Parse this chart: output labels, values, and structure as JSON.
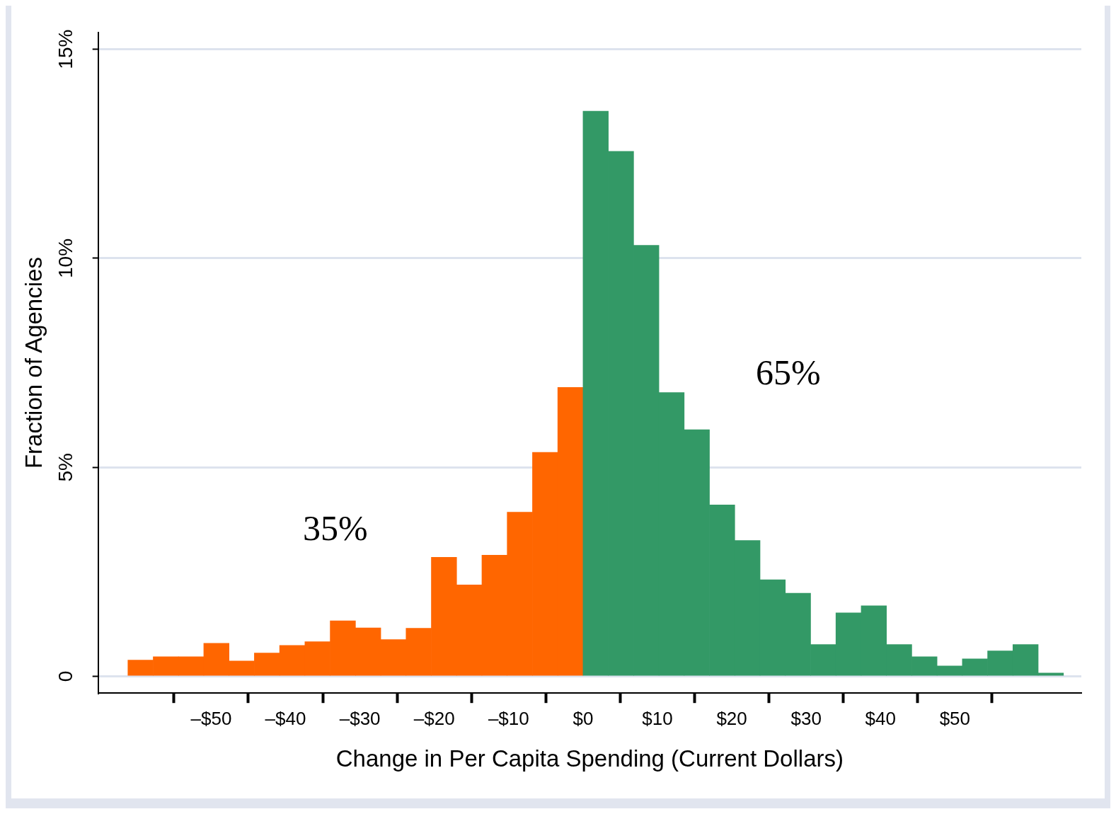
{
  "chart_data": {
    "type": "histogram",
    "xlabel": "Change in Per Capita Spending (Current Dollars)",
    "ylabel": "Fraction of Agencies",
    "bins": [
      -61.2,
      -57.8,
      -54.4,
      -51,
      -47.6,
      -44.2,
      -40.8,
      -37.4,
      -34,
      -30.6,
      -27.2,
      -23.8,
      -20.4,
      -17,
      -13.6,
      -10.2,
      -6.8,
      -3.4,
      0,
      3.4,
      6.8,
      10.2,
      13.6,
      17,
      20.4,
      23.8,
      27.2,
      30.6,
      34,
      37.4,
      40.8,
      44.2,
      47.6,
      51,
      54.4,
      57.8,
      61.2,
      64.6
    ],
    "values": [
      0.39,
      0.47,
      0.47,
      0.79,
      0.37,
      0.56,
      0.74,
      0.83,
      1.33,
      1.16,
      0.88,
      1.15,
      2.85,
      2.19,
      2.9,
      3.93,
      5.36,
      6.91,
      13.52,
      12.56,
      10.31,
      6.79,
      5.9,
      4.1,
      3.25,
      2.31,
      1.99,
      0.76,
      1.52,
      1.69,
      0.76,
      0.47,
      0.25,
      0.42,
      0.61,
      0.76,
      0.08
    ],
    "colors": [
      "#ff6600",
      "#ff6600",
      "#ff6600",
      "#ff6600",
      "#ff6600",
      "#ff6600",
      "#ff6600",
      "#ff6600",
      "#ff6600",
      "#ff6600",
      "#ff6600",
      "#ff6600",
      "#ff6600",
      "#ff6600",
      "#ff6600",
      "#ff6600",
      "#ff6600",
      "#ff6600",
      "#339966",
      "#339966",
      "#339966",
      "#339966",
      "#339966",
      "#339966",
      "#339966",
      "#339966",
      "#339966",
      "#339966",
      "#339966",
      "#339966",
      "#339966",
      "#339966",
      "#339966",
      "#339966",
      "#339966",
      "#339966",
      "#339966"
    ],
    "xlim": [
      -65.2,
      67
    ],
    "xticks": [
      {
        "value": -50,
        "label": "–$50"
      },
      {
        "value": -40,
        "label": "–$40"
      },
      {
        "value": -30,
        "label": "–$30"
      },
      {
        "value": -20,
        "label": "–$20"
      },
      {
        "value": -10,
        "label": "–$10"
      },
      {
        "value": 0,
        "label": "$0"
      },
      {
        "value": 10,
        "label": "$10"
      },
      {
        "value": 20,
        "label": "$20"
      },
      {
        "value": 30,
        "label": "$30"
      },
      {
        "value": 40,
        "label": "$40"
      },
      {
        "value": 50,
        "label": "$50"
      }
    ],
    "ylim": [
      -0.4,
      15.4
    ],
    "yticks": [
      0,
      {
        "value": 5,
        "label": "5%"
      },
      {
        "value": 10,
        "label": "10%"
      },
      {
        "value": 15,
        "label": "15%"
      }
    ],
    "grid": "y",
    "annotations": [
      "35%",
      "65%"
    ]
  }
}
